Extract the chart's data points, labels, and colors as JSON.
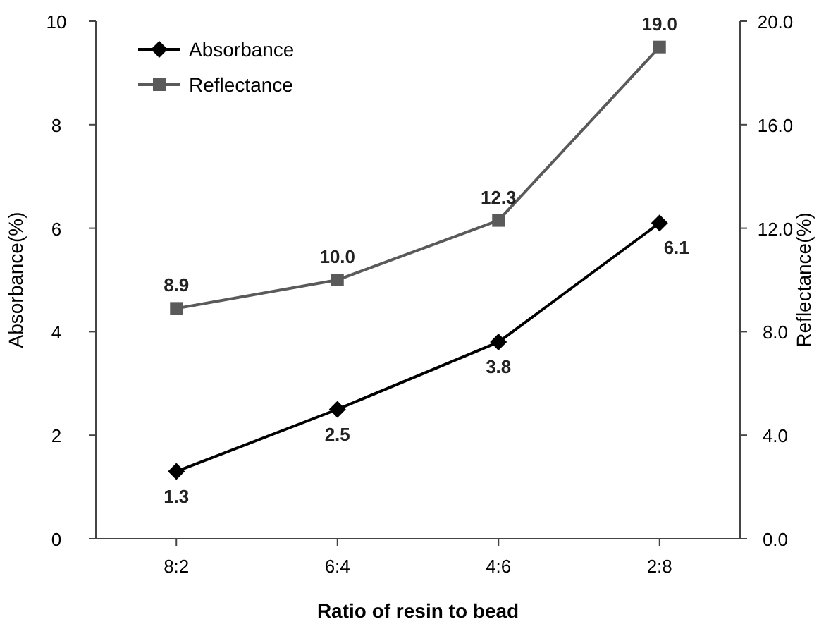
{
  "chart_data": {
    "type": "line",
    "xlabel": "Ratio of resin to bead",
    "ylabel": "Absorbance(%)",
    "y2label": "Reflectance(%)",
    "categories": [
      "8:2",
      "6:4",
      "4:6",
      "2:8"
    ],
    "series": [
      {
        "name": "Absorbance",
        "color": "#000000",
        "marker": "diamond",
        "values": [
          1.3,
          2.5,
          3.8,
          6.1
        ],
        "value_labels": [
          "1.3",
          "2.5",
          "3.8",
          "6.1"
        ]
      },
      {
        "name": "Reflectance",
        "color": "#5a5a5a",
        "marker": "square",
        "axis": "y2",
        "values": [
          8.9,
          10.0,
          12.3,
          19.0
        ],
        "value_labels": [
          "8.9",
          "10.0",
          "12.3",
          "19.0"
        ]
      }
    ],
    "ylim": [
      0,
      10
    ],
    "yticks": [
      0,
      2,
      4,
      6,
      8,
      10
    ],
    "y2lim": [
      0,
      20
    ],
    "y2ticks": [
      {
        "value": 0,
        "label": "0.0"
      },
      {
        "value": 4,
        "label": "4.0"
      },
      {
        "value": 8,
        "label": "8.0"
      },
      {
        "value": 12,
        "label": "12.0"
      },
      {
        "value": 16,
        "label": "16.0"
      },
      {
        "value": 20,
        "label": "20.0"
      }
    ],
    "legend": "top left",
    "grid": false,
    "line_style": "solid"
  }
}
